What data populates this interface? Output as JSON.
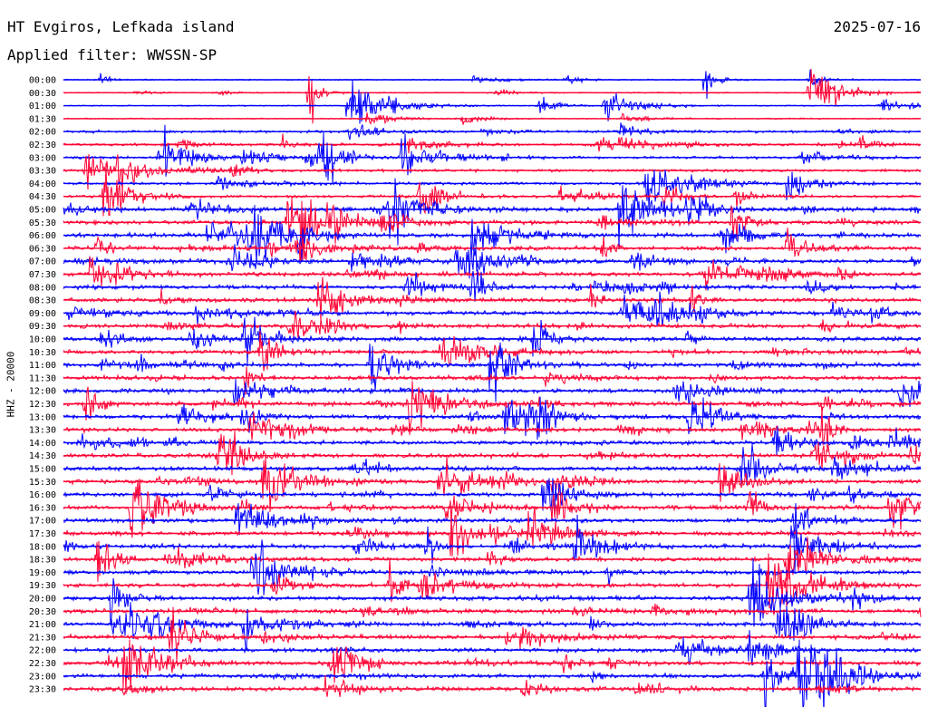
{
  "header": {
    "station": "HT Evgiros, Lefkada island",
    "date": "2025-07-16",
    "filter": "Applied filter: WWSSN-SP"
  },
  "chart_data": {
    "type": "line",
    "title": "HT Evgiros, Lefkada island",
    "subtitle": "Applied filter: WWSSN-SP",
    "ylabel": "HHZ - 20000",
    "colors": [
      "#0000ff",
      "#ff0033"
    ],
    "grid": false,
    "rows": [
      "00:00",
      "00:30",
      "01:00",
      "01:30",
      "02:00",
      "02:30",
      "03:00",
      "03:30",
      "04:00",
      "04:30",
      "05:00",
      "05:30",
      "06:00",
      "06:30",
      "07:00",
      "07:30",
      "08:00",
      "08:30",
      "09:00",
      "09:30",
      "10:00",
      "10:30",
      "11:00",
      "11:30",
      "12:00",
      "12:30",
      "13:00",
      "13:30",
      "14:00",
      "14:30",
      "15:00",
      "15:30",
      "16:00",
      "16:30",
      "17:00",
      "17:30",
      "18:00",
      "18:30",
      "19:00",
      "19:30",
      "20:00",
      "20:30",
      "21:00",
      "21:30",
      "22:00",
      "22:30",
      "23:00",
      "23:30"
    ]
  }
}
